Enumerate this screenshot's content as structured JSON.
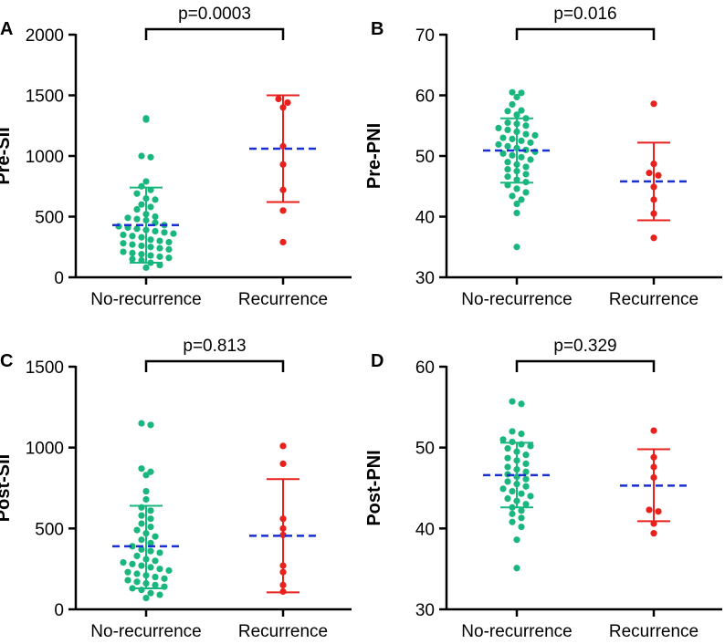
{
  "colors": {
    "no_recurrence": "#19b77e",
    "recurrence": "#e8211c",
    "mean_line": "#1a2fd0",
    "axis": "#000000"
  },
  "chart_data": [
    {
      "panel": "A",
      "type": "scatter",
      "ylabel": "Pre-SII",
      "ylim": [
        0,
        2000
      ],
      "yticks": [
        0,
        500,
        1000,
        1500,
        2000
      ],
      "categories": [
        "No-recurrence",
        "Recurrence"
      ],
      "p_value": "p=0.0003",
      "groups": [
        {
          "name": "No-recurrence",
          "mean": 430,
          "sd_low": 120,
          "sd_high": 740,
          "values": [
            1310,
            1300,
            1000,
            990,
            790,
            750,
            720,
            690,
            650,
            640,
            600,
            580,
            560,
            520,
            500,
            490,
            480,
            470,
            450,
            430,
            420,
            410,
            400,
            390,
            380,
            370,
            360,
            350,
            340,
            330,
            310,
            300,
            290,
            280,
            270,
            260,
            250,
            240,
            230,
            210,
            200,
            190,
            180,
            170,
            160,
            150,
            140,
            120,
            100,
            80
          ]
        },
        {
          "name": "Recurrence",
          "mean": 1060,
          "sd_low": 620,
          "sd_high": 1500,
          "values": [
            1470,
            1440,
            1400,
            1080,
            930,
            720,
            550,
            290
          ]
        }
      ]
    },
    {
      "panel": "B",
      "type": "scatter",
      "ylabel": "Pre-PNI",
      "ylim": [
        30,
        70
      ],
      "yticks": [
        30,
        40,
        50,
        60,
        70
      ],
      "categories": [
        "No-recurrence",
        "Recurrence"
      ],
      "p_value": "p=0.016",
      "groups": [
        {
          "name": "No-recurrence",
          "mean": 50.9,
          "sd_low": 45.6,
          "sd_high": 56.2,
          "values": [
            60.5,
            60.4,
            59.7,
            58.5,
            57.5,
            57.4,
            56.8,
            56.2,
            55.5,
            55.3,
            55.0,
            54.6,
            54.3,
            54.0,
            53.6,
            53.4,
            53.0,
            52.8,
            52.5,
            52.2,
            51.9,
            51.6,
            51.3,
            51.0,
            50.7,
            50.4,
            50.1,
            49.8,
            49.4,
            49.0,
            48.6,
            48.2,
            47.8,
            47.5,
            47.0,
            46.6,
            46.1,
            45.7,
            45.2,
            44.6,
            44.0,
            43.4,
            42.8,
            42.1,
            40.6,
            35.0
          ]
        },
        {
          "name": "Recurrence",
          "mean": 45.8,
          "sd_low": 39.4,
          "sd_high": 52.2,
          "values": [
            58.6,
            48.7,
            47.2,
            46.8,
            44.9,
            42.8,
            40.5,
            36.5
          ]
        }
      ]
    },
    {
      "panel": "C",
      "type": "scatter",
      "ylabel": "Post-SII",
      "ylim": [
        0,
        1500
      ],
      "yticks": [
        0,
        500,
        1000,
        1500
      ],
      "categories": [
        "No-recurrence",
        "Recurrence"
      ],
      "p_value": "p=0.813",
      "groups": [
        {
          "name": "No-recurrence",
          "mean": 390,
          "sd_low": 130,
          "sd_high": 640,
          "values": [
            1150,
            1140,
            870,
            850,
            830,
            730,
            680,
            630,
            610,
            580,
            560,
            530,
            510,
            490,
            470,
            450,
            430,
            410,
            390,
            370,
            360,
            350,
            330,
            310,
            300,
            290,
            280,
            270,
            260,
            250,
            240,
            230,
            220,
            210,
            200,
            190,
            180,
            170,
            160,
            150,
            140,
            130,
            120,
            100,
            90,
            70
          ]
        },
        {
          "name": "Recurrence",
          "mean": 455,
          "sd_low": 105,
          "sd_high": 805,
          "values": [
            1010,
            900,
            560,
            500,
            460,
            270,
            230,
            150,
            110
          ]
        }
      ]
    },
    {
      "panel": "D",
      "type": "scatter",
      "ylabel": "Post-PNI",
      "ylim": [
        30,
        60
      ],
      "yticks": [
        30,
        40,
        50,
        60
      ],
      "categories": [
        "No-recurrence",
        "Recurrence"
      ],
      "p_value": "p=0.329",
      "groups": [
        {
          "name": "No-recurrence",
          "mean": 46.6,
          "sd_low": 42.6,
          "sd_high": 50.6,
          "values": [
            55.7,
            55.4,
            52.0,
            51.7,
            51.0,
            50.7,
            50.4,
            50.2,
            49.9,
            49.5,
            49.1,
            48.7,
            48.4,
            48.0,
            47.6,
            47.3,
            47.0,
            46.7,
            46.4,
            46.1,
            45.8,
            45.5,
            45.2,
            44.9,
            44.6,
            44.3,
            44.0,
            43.7,
            43.4,
            43.0,
            42.6,
            42.2,
            41.8,
            41.3,
            40.8,
            40.2,
            38.6,
            35.1
          ]
        },
        {
          "name": "Recurrence",
          "mean": 45.3,
          "sd_low": 40.9,
          "sd_high": 49.8,
          "values": [
            52.1,
            48.8,
            47.6,
            46.3,
            42.3,
            42.1,
            40.6,
            39.4
          ]
        }
      ]
    }
  ]
}
